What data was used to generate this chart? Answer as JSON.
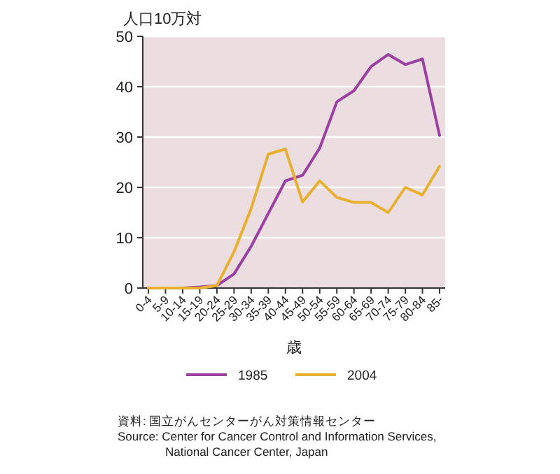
{
  "chart_data": {
    "type": "line",
    "ylabel": "人口10万対",
    "xlabel": "歳",
    "categories": [
      "0-4",
      "5-9",
      "10-14",
      "15-19",
      "20-24",
      "25-29",
      "30-34",
      "35-39",
      "40-44",
      "45-49",
      "50-54",
      "55-59",
      "60-64",
      "65-69",
      "70-74",
      "75-79",
      "80-84",
      "85-"
    ],
    "series": [
      {
        "name": "1985",
        "color": "#9b3fa0",
        "values": [
          0,
          0,
          0,
          0.2,
          0.5,
          2.8,
          8.3,
          14.8,
          21.3,
          22.4,
          27.8,
          37,
          39.2,
          44,
          46.4,
          44.4,
          45.5,
          30.3
        ]
      },
      {
        "name": "2004",
        "color": "#e8b030",
        "values": [
          0,
          0,
          0,
          0,
          0.5,
          7.2,
          15.8,
          26.6,
          27.6,
          17.1,
          21.3,
          18,
          17,
          17,
          15,
          20,
          18.5,
          24.2
        ]
      }
    ],
    "ylim": [
      0,
      50
    ],
    "yticks": [
      0,
      10,
      20,
      30,
      40,
      50
    ],
    "grid": "y",
    "legend": "bottom",
    "annotations": [
      "資料: 国立がんセンターがん対策情報センター",
      "Source: Center for Cancer Control and Information Services, National Cancer Center, Japan"
    ]
  }
}
